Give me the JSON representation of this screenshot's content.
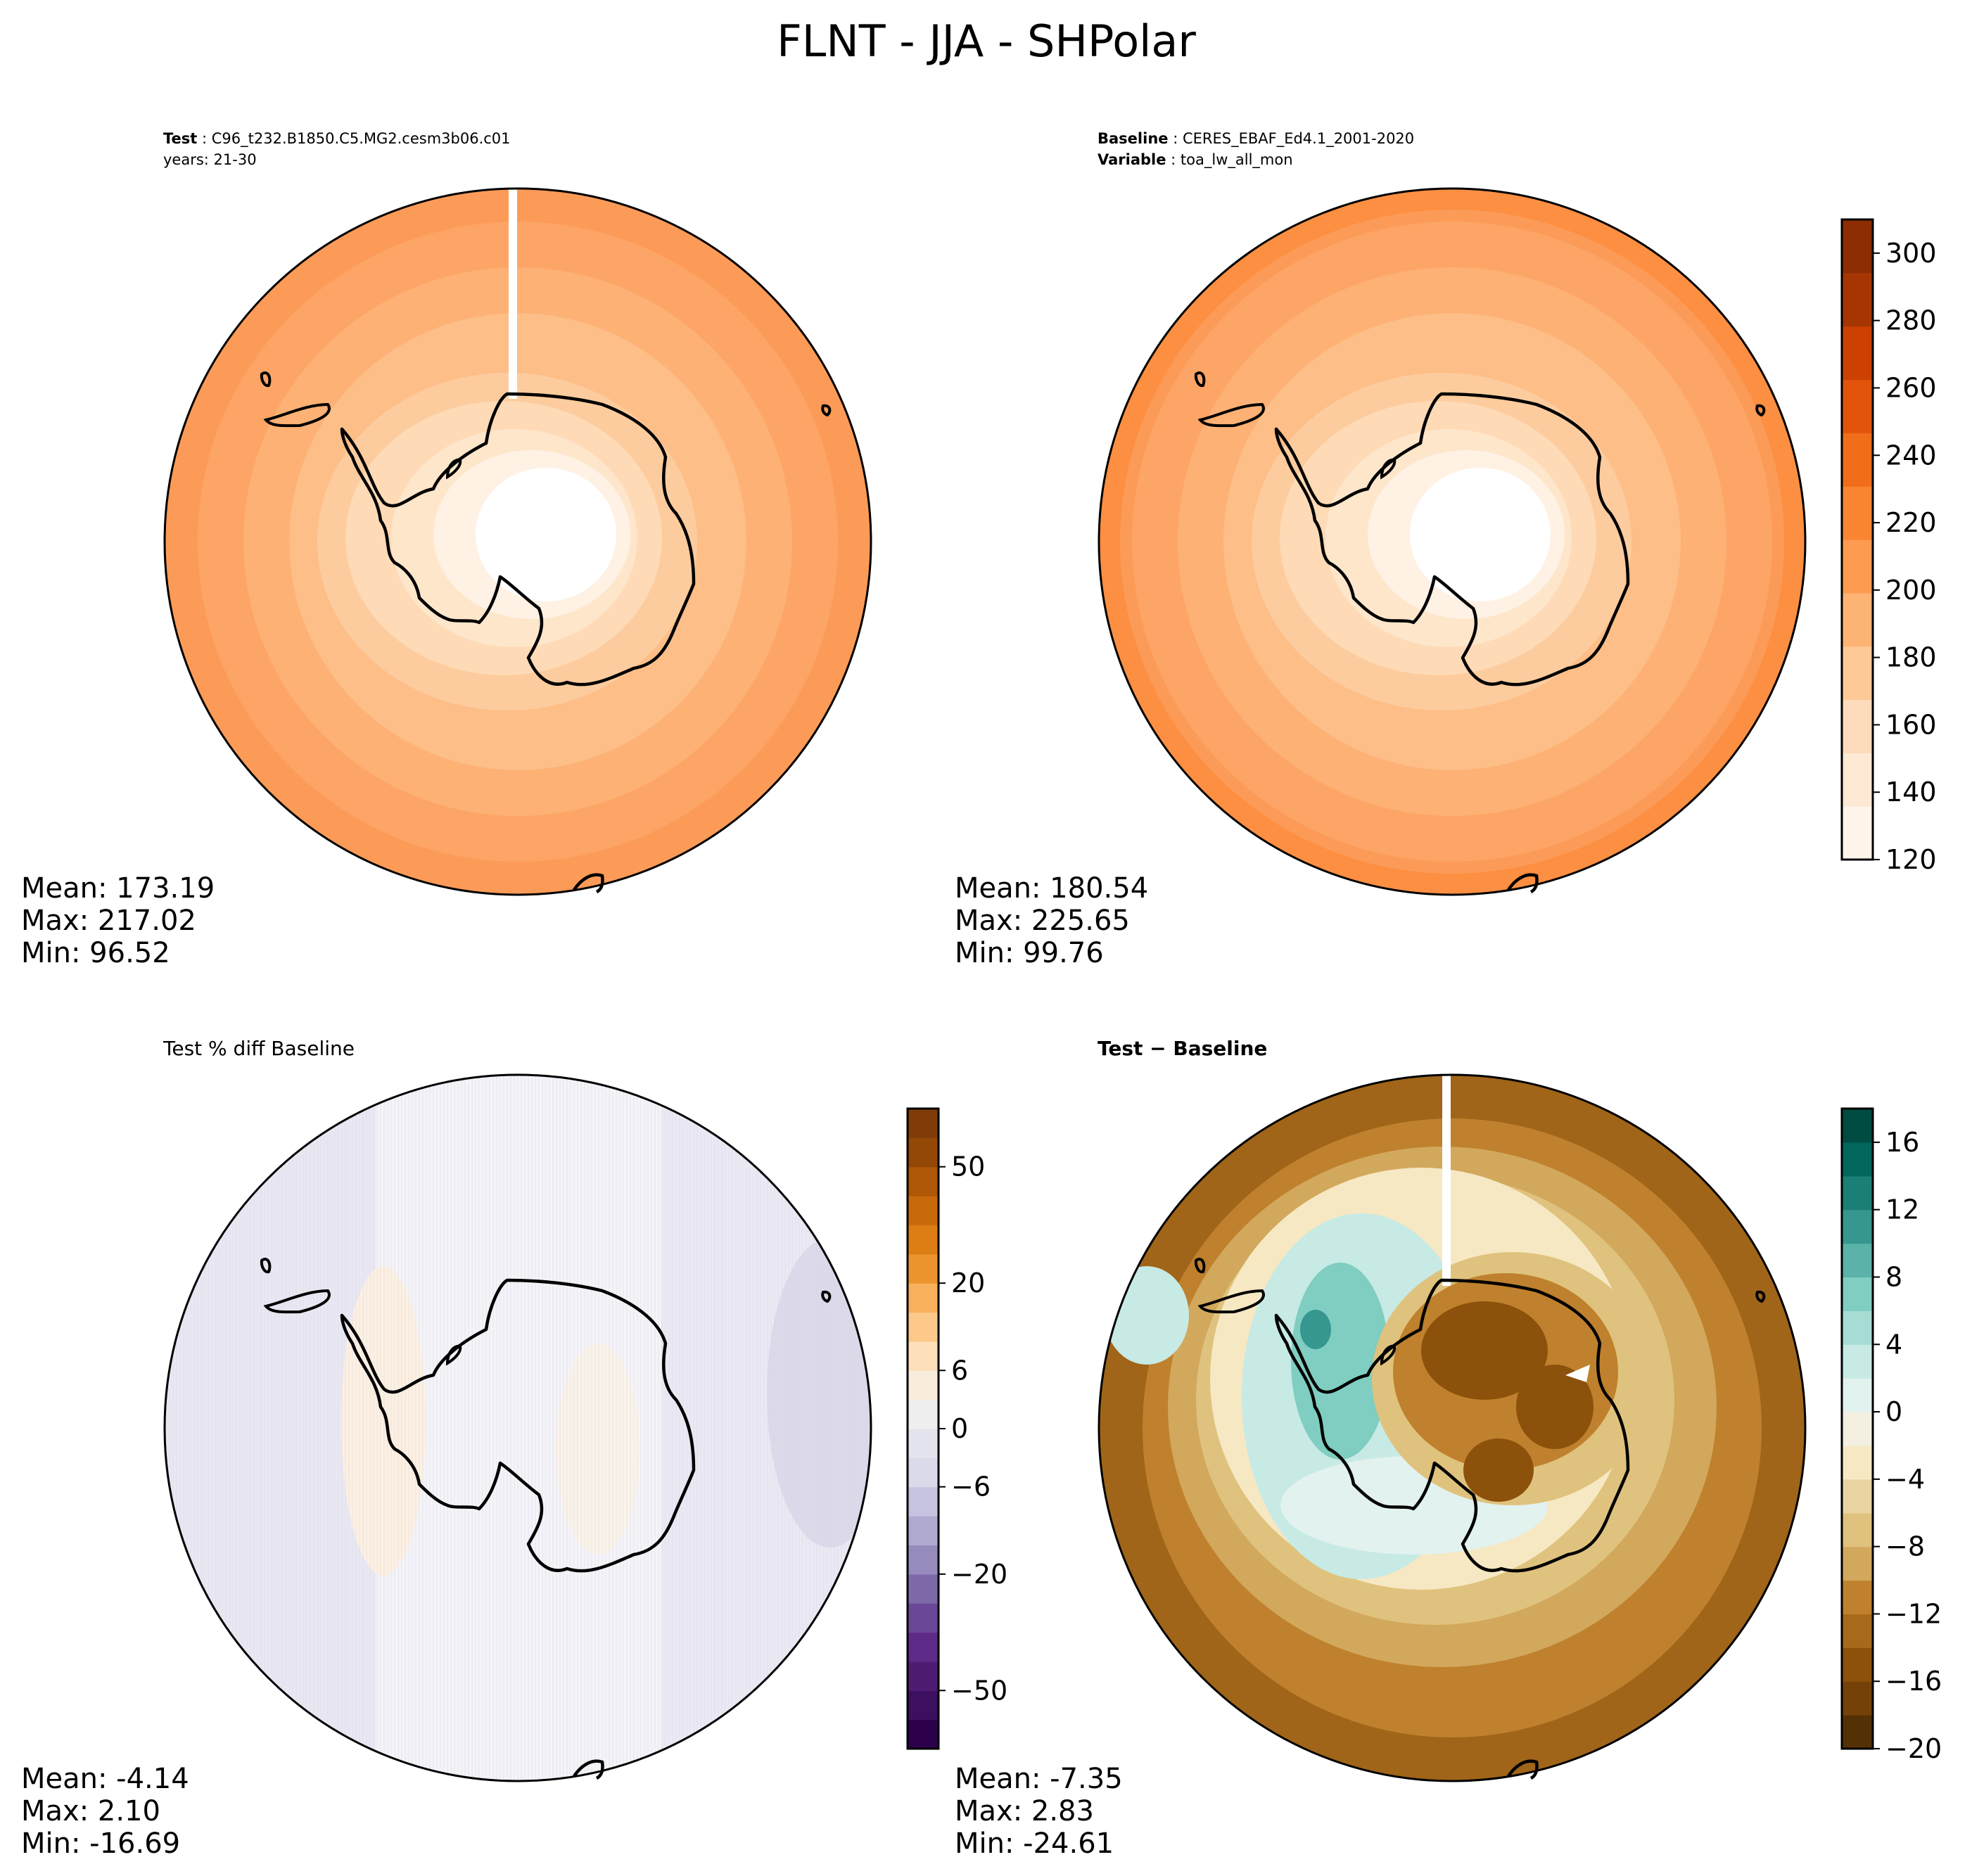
{
  "title": "FLNT - JJA - SHPolar",
  "panels": {
    "test": {
      "label_bold": "Test",
      "label_value": "C96_t232.B1850.C5.MG2.cesm3b06.c01",
      "years": "years: 21-30",
      "stats": {
        "mean": "Mean: 173.19",
        "max": "Max: 217.02",
        "min": "Min: 96.52"
      }
    },
    "baseline": {
      "label_bold": "Baseline",
      "label_value": "CERES_EBAF_Ed4.1_2001-2020",
      "variable_bold": "Variable",
      "variable_value": "toa_lw_all_mon",
      "stats": {
        "mean": "Mean: 180.54",
        "max": "Max: 225.65",
        "min": "Min: 99.76"
      }
    },
    "pctdiff": {
      "title": "Test % diff Baseline",
      "stats": {
        "mean": "Mean: -4.14",
        "max": "Max:  2.10",
        "min": "Min: -16.69"
      }
    },
    "diff": {
      "title": "Test − Baseline",
      "stats": {
        "mean": "Mean: -7.35",
        "max": "Max:  2.83",
        "min": "Min: -24.61"
      }
    }
  },
  "colorbars": {
    "main": {
      "ticks": [
        "120",
        "140",
        "160",
        "180",
        "200",
        "220",
        "240",
        "260",
        "280",
        "300"
      ],
      "colors": [
        "#fff5eb",
        "#fee9d4",
        "#fddcbb",
        "#fdc997",
        "#fdb373",
        "#fd9c51",
        "#f98532",
        "#f06d19",
        "#e2540b",
        "#cc4002",
        "#a53603",
        "#8c2d04"
      ]
    },
    "pct": {
      "ticks": [
        "-50",
        "-20",
        "-6",
        "0",
        "6",
        "20",
        "50"
      ],
      "colors": [
        "#2d004b",
        "#3d0f60",
        "#4f1c73",
        "#5e2b88",
        "#6b4797",
        "#7e69a9",
        "#978bbd",
        "#b0aad1",
        "#c6c3e0",
        "#dadaea",
        "#e4e4ef",
        "#eeeeee",
        "#f9ecdb",
        "#fddfb9",
        "#fdc98b",
        "#f9b05c",
        "#ec952f",
        "#dc7e14",
        "#c86a0c",
        "#ae5707",
        "#944805",
        "#7f3b08"
      ]
    },
    "diff": {
      "ticks": [
        "-20",
        "-16",
        "-12",
        "-8",
        "-4",
        "0",
        "4",
        "8",
        "12",
        "16"
      ],
      "colors": [
        "#543005",
        "#744109",
        "#8c510a",
        "#a76a1b",
        "#bf812d",
        "#d2a85c",
        "#dfc27d",
        "#ead4a1",
        "#f6e8c3",
        "#f3efe1",
        "#e2f2ef",
        "#c7eae5",
        "#a6dcd3",
        "#80cdc1",
        "#5ab2a8",
        "#35978f",
        "#1a7f76",
        "#01665e",
        "#004c42"
      ]
    }
  },
  "chart_data": {
    "type": "map",
    "projection": "South polar stereographic",
    "region": "SHPolar",
    "variable": "FLNT",
    "season": "JJA",
    "maps": [
      {
        "panel": "Test",
        "case": "C96_t232.B1850.C5.MG2.cesm3b06.c01",
        "years": "21-30",
        "mean": 173.19,
        "max": 217.02,
        "min": 96.52,
        "colorbar_range": [
          120,
          310
        ]
      },
      {
        "panel": "Baseline",
        "case": "CERES_EBAF_Ed4.1_2001-2020",
        "variable": "toa_lw_all_mon",
        "mean": 180.54,
        "max": 225.65,
        "min": 99.76,
        "colorbar_range": [
          120,
          310
        ]
      },
      {
        "panel": "Test % diff Baseline",
        "mean": -4.14,
        "max": 2.1,
        "min": -16.69,
        "colorbar_ticks": [
          -50,
          -20,
          -6,
          0,
          6,
          20,
          50
        ]
      },
      {
        "panel": "Test − Baseline",
        "mean": -7.35,
        "max": 2.83,
        "min": -24.61,
        "colorbar_range": [
          -20,
          18
        ]
      }
    ]
  }
}
